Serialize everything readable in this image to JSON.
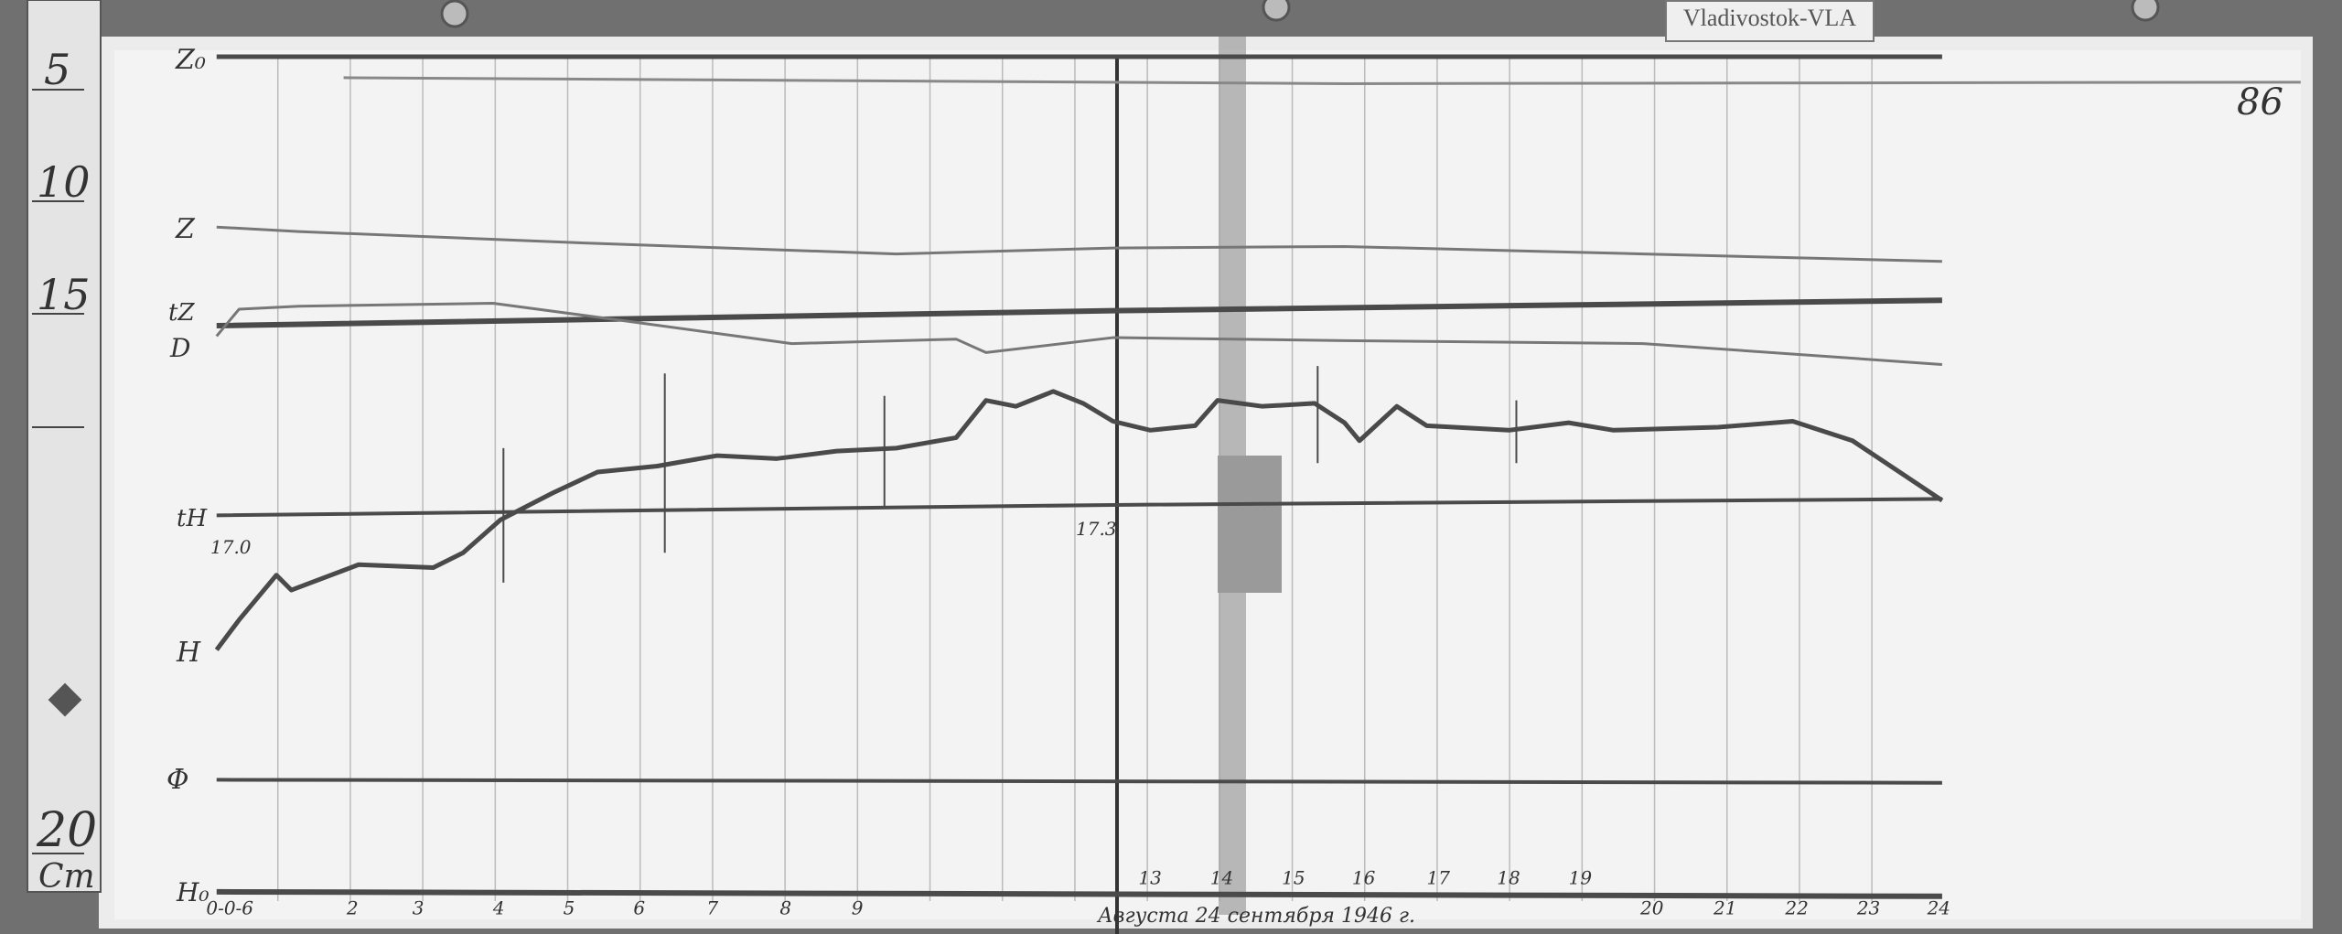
{
  "station_tag": "Vladivostok-VLA",
  "sheet_number": "86",
  "ruler": {
    "marks": [
      "5",
      "10",
      "15",
      "20"
    ],
    "unit": "Cm"
  },
  "trace_labels": {
    "z0": "Z₀",
    "z": "Z",
    "tz": "tZ",
    "d": "D",
    "th": "tH",
    "h": "H",
    "phi": "Φ",
    "h0": "H₀"
  },
  "time_marks": {
    "start": "17.0",
    "mid": "17.3"
  },
  "hour_labels_left": [
    "0-0-6",
    "2",
    "3",
    "4",
    "5",
    "6",
    "7",
    "8",
    "9"
  ],
  "hour_labels_right_top": [
    "13",
    "14",
    "15",
    "16",
    "17",
    "18",
    "19"
  ],
  "hour_labels_right_bottom": [
    "20",
    "21",
    "22",
    "23",
    "24"
  ],
  "date_note": "Августа 24 сентября 1946 г.",
  "colors": {
    "paper": "#f1f1f1",
    "trace": "#4a4a4a",
    "background": "#6a6a6a"
  }
}
